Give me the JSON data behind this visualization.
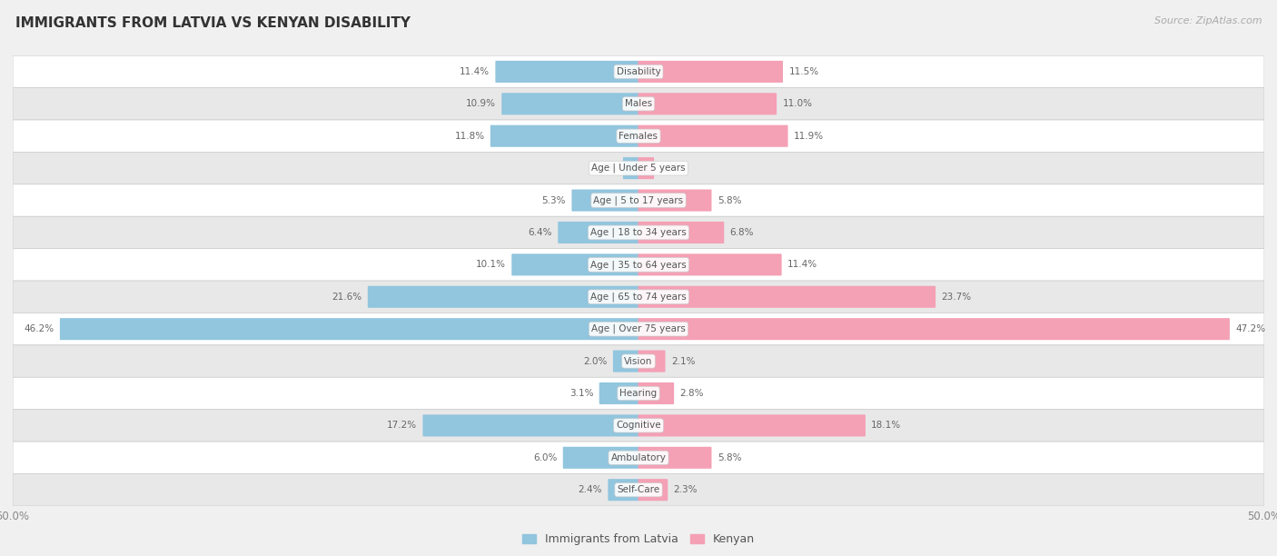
{
  "title": "IMMIGRANTS FROM LATVIA VS KENYAN DISABILITY",
  "source": "Source: ZipAtlas.com",
  "categories": [
    "Disability",
    "Males",
    "Females",
    "Age | Under 5 years",
    "Age | 5 to 17 years",
    "Age | 18 to 34 years",
    "Age | 35 to 64 years",
    "Age | 65 to 74 years",
    "Age | Over 75 years",
    "Vision",
    "Hearing",
    "Cognitive",
    "Ambulatory",
    "Self-Care"
  ],
  "latvia_values": [
    11.4,
    10.9,
    11.8,
    1.2,
    5.3,
    6.4,
    10.1,
    21.6,
    46.2,
    2.0,
    3.1,
    17.2,
    6.0,
    2.4
  ],
  "kenya_values": [
    11.5,
    11.0,
    11.9,
    1.2,
    5.8,
    6.8,
    11.4,
    23.7,
    47.2,
    2.1,
    2.8,
    18.1,
    5.8,
    2.3
  ],
  "latvia_color": "#92C5DE",
  "kenya_color": "#F4A0B5",
  "axis_limit": 50.0,
  "background_color": "#f0f0f0",
  "bar_height": 0.6,
  "legend_labels": [
    "Immigrants from Latvia",
    "Kenyan"
  ],
  "row_colors": [
    "#ffffff",
    "#e8e8e8"
  ]
}
